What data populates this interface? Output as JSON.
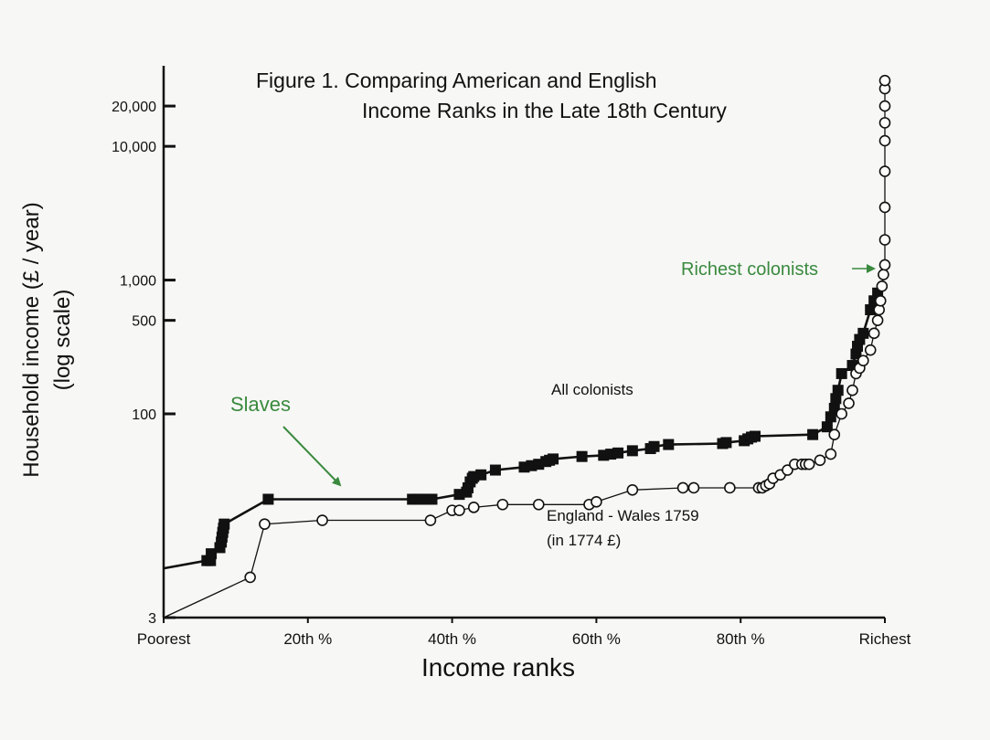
{
  "chart_data": {
    "type": "line",
    "title": "Figure 1. Comparing American and English",
    "subtitle": "Income Ranks in the Late 18th Century",
    "xlabel": "Income ranks",
    "ylabel": "Household income (£ / year)",
    "ylabel2": "(log scale)",
    "xlim": [
      0,
      100
    ],
    "ylim": [
      3,
      40000
    ],
    "y_scale": "log",
    "x_ticks": [
      {
        "value": 0,
        "label": "Poorest"
      },
      {
        "value": 20,
        "label": "20th %"
      },
      {
        "value": 40,
        "label": "40th %"
      },
      {
        "value": 60,
        "label": "60th %"
      },
      {
        "value": 80,
        "label": "80th %"
      },
      {
        "value": 100,
        "label": "Richest"
      }
    ],
    "y_ticks": [
      {
        "value": 3,
        "label": "3"
      },
      {
        "value": 100,
        "label": "100"
      },
      {
        "value": 500,
        "label": "500"
      },
      {
        "value": 1000,
        "label": "1,000"
      },
      {
        "value": 10000,
        "label": "10,000"
      },
      {
        "value": 20000,
        "label": "20,000"
      }
    ],
    "grid": false,
    "series": [
      {
        "name": "All colonists",
        "marker": "square",
        "color": "#111111",
        "x": [
          0,
          6,
          6.5,
          6.6,
          7.8,
          8,
          8.1,
          8.2,
          8.3,
          8.4,
          14.5,
          34.5,
          35,
          35.5,
          36.5,
          37.2,
          41,
          42,
          42.2,
          42.5,
          42.8,
          43,
          44,
          46,
          50,
          51,
          52,
          53,
          53.5,
          54,
          58,
          61,
          62,
          63,
          65,
          67.5,
          68,
          70,
          77.5,
          78,
          80.5,
          81,
          81.5,
          82,
          90,
          92,
          92.5,
          93,
          93.2,
          93.5,
          94,
          95.5,
          96,
          96.2,
          96.5,
          97,
          98,
          98.5,
          99
        ],
        "y": [
          7,
          8,
          8,
          9,
          10,
          11,
          12,
          13,
          14,
          15,
          23,
          23,
          23,
          23,
          23,
          23,
          25,
          26,
          28,
          31,
          33,
          34,
          35,
          38,
          40,
          41,
          42,
          44,
          45,
          46,
          48,
          49,
          50,
          51,
          53,
          55,
          57,
          59,
          60,
          61,
          63,
          65,
          67,
          68,
          70,
          80,
          95,
          110,
          130,
          150,
          200,
          230,
          280,
          320,
          360,
          400,
          600,
          700,
          800
        ]
      },
      {
        "name": "England - Wales 1759",
        "note": "(in 1774 £)",
        "marker": "circle",
        "color": "#111111",
        "x": [
          0,
          12,
          14,
          22,
          37,
          40,
          41,
          43,
          47,
          52,
          59,
          60,
          65,
          72,
          73.5,
          78.5,
          82.5,
          83,
          83.5,
          84,
          84.5,
          85.5,
          86.5,
          87.5,
          88.5,
          89,
          89.5,
          91,
          92.5,
          93,
          94,
          95,
          95.5,
          96,
          96.5,
          97,
          98,
          98.5,
          99,
          99.2,
          99.4,
          99.6,
          99.8,
          100,
          100,
          100,
          100,
          100,
          100,
          100,
          100,
          100
        ],
        "y": [
          3,
          6,
          15,
          16,
          16,
          19,
          19,
          20,
          21,
          21,
          21,
          22,
          27,
          28,
          28,
          28,
          28,
          28,
          29,
          30,
          33,
          35,
          38,
          42,
          42,
          42,
          42,
          45,
          50,
          70,
          100,
          120,
          150,
          200,
          220,
          250,
          300,
          400,
          500,
          600,
          700,
          900,
          1100,
          1300,
          2000,
          3500,
          6500,
          11000,
          15000,
          20000,
          27000,
          31000
        ]
      }
    ],
    "annotations": {
      "slaves": "Slaves",
      "richest_colonists": "Richest colonists",
      "all_colonists": "All colonists",
      "england_wales": "England - Wales 1759",
      "england_wales_units": "(in 1774 £)"
    },
    "colors": {
      "background": "#f7f7f6",
      "ink": "#111111",
      "annotation_green": "#3a8a3e"
    }
  }
}
